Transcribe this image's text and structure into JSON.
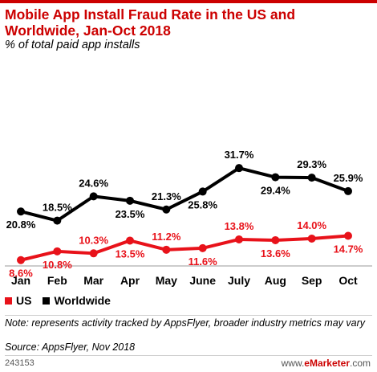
{
  "header": {
    "title": "Mobile App Install Fraud Rate in the US and Worldwide, Jan-Oct 2018",
    "subtitle": "% of total paid app installs"
  },
  "legend": [
    {
      "label": "US",
      "color": "#e8121a"
    },
    {
      "label": "Worldwide",
      "color": "#000000"
    }
  ],
  "footer": {
    "note": "Note: represents activity tracked by AppsFlyer, broader industry metrics may vary",
    "source": "Source: AppsFlyer, Nov 2018",
    "chart_id": "243153",
    "brand_prefix": "www.",
    "brand_name": "eMarketer",
    "brand_suffix": ".com"
  },
  "chart_data": {
    "type": "line",
    "categories": [
      "Jan",
      "Feb",
      "Mar",
      "Apr",
      "May",
      "June",
      "July",
      "Aug",
      "Sep",
      "Oct"
    ],
    "series": [
      {
        "name": "US",
        "color": "#e8121a",
        "values": [
          8.6,
          10.8,
          10.3,
          13.5,
          11.2,
          11.6,
          13.8,
          13.6,
          14.0,
          14.7
        ],
        "labels": [
          "8.6%",
          "10.8%",
          "10.3%",
          "13.5%",
          "11.2%",
          "11.6%",
          "13.8%",
          "13.6%",
          "14.0%",
          "14.7%"
        ]
      },
      {
        "name": "Worldwide",
        "color": "#000000",
        "values": [
          20.8,
          18.5,
          24.6,
          23.5,
          21.3,
          25.8,
          31.7,
          29.4,
          29.3,
          25.9
        ],
        "labels": [
          "20.8%",
          "18.5%",
          "24.6%",
          "23.5%",
          "21.3%",
          "25.8%",
          "31.7%",
          "29.4%",
          "29.3%",
          "25.9%"
        ]
      }
    ],
    "grid": false,
    "legend_position": "bottom-left"
  }
}
